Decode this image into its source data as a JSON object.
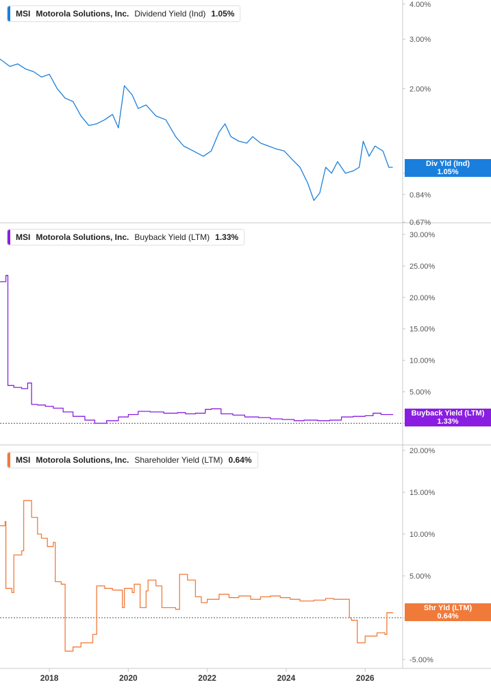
{
  "x_ticks": [
    "2018",
    "2020",
    "2022",
    "2024",
    "2026"
  ],
  "panels": [
    {
      "ticker": "MSI",
      "company": "Motorola Solutions, Inc.",
      "metric": "Dividend Yield (Ind)",
      "value": "1.05%",
      "color": "#1a7fdc",
      "badge_label": "Div Yld (Ind)",
      "badge_value": "1.05%",
      "y_ticks": [
        "4.00%",
        "3.00%",
        "2.00%",
        "1.00%",
        "0.84%",
        "0.67%"
      ]
    },
    {
      "ticker": "MSI",
      "company": "Motorola Solutions, Inc.",
      "metric": "Buyback Yield (LTM)",
      "value": "1.33%",
      "color": "#8a1ee0",
      "badge_label": "Buyback Yield (LTM)",
      "badge_value": "1.33%",
      "y_ticks": [
        "30.00%",
        "25.00%",
        "20.00%",
        "15.00%",
        "10.00%",
        "5.00%",
        "0.00%"
      ]
    },
    {
      "ticker": "MSI",
      "company": "Motorola Solutions, Inc.",
      "metric": "Shareholder Yield (LTM)",
      "value": "0.64%",
      "color": "#f07a3a",
      "badge_label": "Shr Yld (LTM)",
      "badge_value": "0.64%",
      "y_ticks": [
        "20.00%",
        "15.00%",
        "10.00%",
        "5.00%",
        "0.00%",
        "-5.00%"
      ]
    }
  ],
  "chart_data": [
    {
      "type": "line",
      "title": "MSI Motorola Solutions, Inc. Dividend Yield (Ind) 1.05%",
      "y_scale": "log",
      "ylim": [
        0.67,
        4.0
      ],
      "series": [
        {
          "name": "Dividend Yield (Ind)",
          "x": [
            2016.75,
            2017.0,
            2017.2,
            2017.4,
            2017.6,
            2017.8,
            2018.0,
            2018.2,
            2018.4,
            2018.6,
            2018.8,
            2019.0,
            2019.2,
            2019.4,
            2019.6,
            2019.75,
            2019.9,
            2020.1,
            2020.25,
            2020.45,
            2020.7,
            2020.95,
            2021.2,
            2021.4,
            2021.65,
            2021.9,
            2022.1,
            2022.3,
            2022.45,
            2022.6,
            2022.8,
            2023.0,
            2023.15,
            2023.35,
            2023.55,
            2023.75,
            2023.95,
            2024.15,
            2024.35,
            2024.55,
            2024.7,
            2024.85,
            2025.0,
            2025.15,
            2025.3,
            2025.5,
            2025.7,
            2025.85,
            2025.95,
            2026.1,
            2026.25,
            2026.45,
            2026.6,
            2026.7
          ],
          "values": [
            2.55,
            2.4,
            2.45,
            2.35,
            2.3,
            2.2,
            2.25,
            2.0,
            1.85,
            1.8,
            1.6,
            1.48,
            1.5,
            1.55,
            1.62,
            1.45,
            2.05,
            1.9,
            1.7,
            1.75,
            1.6,
            1.55,
            1.35,
            1.25,
            1.2,
            1.15,
            1.2,
            1.4,
            1.5,
            1.35,
            1.3,
            1.28,
            1.35,
            1.28,
            1.25,
            1.22,
            1.2,
            1.12,
            1.05,
            0.92,
            0.8,
            0.85,
            1.05,
            1.0,
            1.1,
            1.0,
            1.02,
            1.05,
            1.3,
            1.15,
            1.25,
            1.2,
            1.05,
            1.05
          ]
        }
      ]
    },
    {
      "type": "line",
      "title": "MSI Motorola Solutions, Inc. Buyback Yield (LTM) 1.33%",
      "ylim": [
        -0.5,
        30.0
      ],
      "series": [
        {
          "name": "Buyback Yield (LTM)",
          "x": [
            2016.75,
            2016.9,
            2016.95,
            2017.1,
            2017.3,
            2017.45,
            2017.55,
            2017.7,
            2017.9,
            2018.1,
            2018.35,
            2018.6,
            2018.9,
            2019.15,
            2019.45,
            2019.75,
            2020.0,
            2020.25,
            2020.55,
            2020.9,
            2021.25,
            2021.45,
            2021.7,
            2021.95,
            2022.1,
            2022.35,
            2022.65,
            2022.95,
            2023.3,
            2023.6,
            2023.9,
            2024.2,
            2024.45,
            2024.8,
            2025.1,
            2025.4,
            2025.7,
            2026.0,
            2026.2,
            2026.4,
            2026.7
          ],
          "values": [
            22.5,
            23.5,
            6.0,
            5.7,
            5.5,
            6.4,
            3.0,
            2.9,
            2.7,
            2.4,
            1.8,
            1.1,
            0.5,
            0.0,
            0.4,
            1.0,
            1.4,
            1.9,
            1.8,
            1.6,
            1.7,
            1.5,
            1.6,
            2.2,
            2.3,
            1.5,
            1.3,
            1.0,
            0.9,
            0.7,
            0.6,
            0.4,
            0.5,
            0.4,
            0.5,
            1.0,
            1.1,
            1.2,
            1.6,
            1.4,
            1.33
          ]
        }
      ]
    },
    {
      "type": "line",
      "title": "MSI Motorola Solutions, Inc. Shareholder Yield (LTM) 0.64%",
      "ylim": [
        -5.0,
        20.0
      ],
      "series": [
        {
          "name": "Shareholder Yield (LTM)",
          "x": [
            2016.75,
            2016.88,
            2016.9,
            2017.05,
            2017.1,
            2017.3,
            2017.35,
            2017.55,
            2017.7,
            2017.8,
            2017.95,
            2018.1,
            2018.15,
            2018.3,
            2018.4,
            2018.6,
            2018.8,
            2019.1,
            2019.2,
            2019.4,
            2019.6,
            2019.85,
            2019.9,
            2020.1,
            2020.15,
            2020.3,
            2020.45,
            2020.5,
            2020.7,
            2020.85,
            2021.2,
            2021.3,
            2021.5,
            2021.7,
            2021.85,
            2022.0,
            2022.3,
            2022.55,
            2022.8,
            2023.1,
            2023.35,
            2023.6,
            2023.85,
            2024.1,
            2024.35,
            2024.7,
            2025.0,
            2025.2,
            2025.4,
            2025.6,
            2025.65,
            2025.8,
            2026.0,
            2026.3,
            2026.5,
            2026.55,
            2026.7
          ],
          "values": [
            11.0,
            11.5,
            3.5,
            3.0,
            7.5,
            8.0,
            14.0,
            12.0,
            10.0,
            9.5,
            8.5,
            9.0,
            4.3,
            4.0,
            -4.0,
            -3.5,
            -3.0,
            -2.0,
            3.8,
            3.5,
            3.3,
            1.2,
            3.5,
            3.0,
            4.0,
            1.2,
            3.2,
            4.5,
            3.8,
            1.2,
            1.0,
            5.2,
            4.5,
            2.5,
            1.8,
            2.2,
            2.8,
            2.4,
            2.6,
            2.2,
            2.5,
            2.6,
            2.4,
            2.2,
            2.0,
            2.1,
            2.3,
            2.2,
            2.2,
            0.0,
            -0.3,
            -3.0,
            -2.2,
            -1.8,
            -2.0,
            0.6,
            0.64
          ]
        }
      ]
    }
  ]
}
